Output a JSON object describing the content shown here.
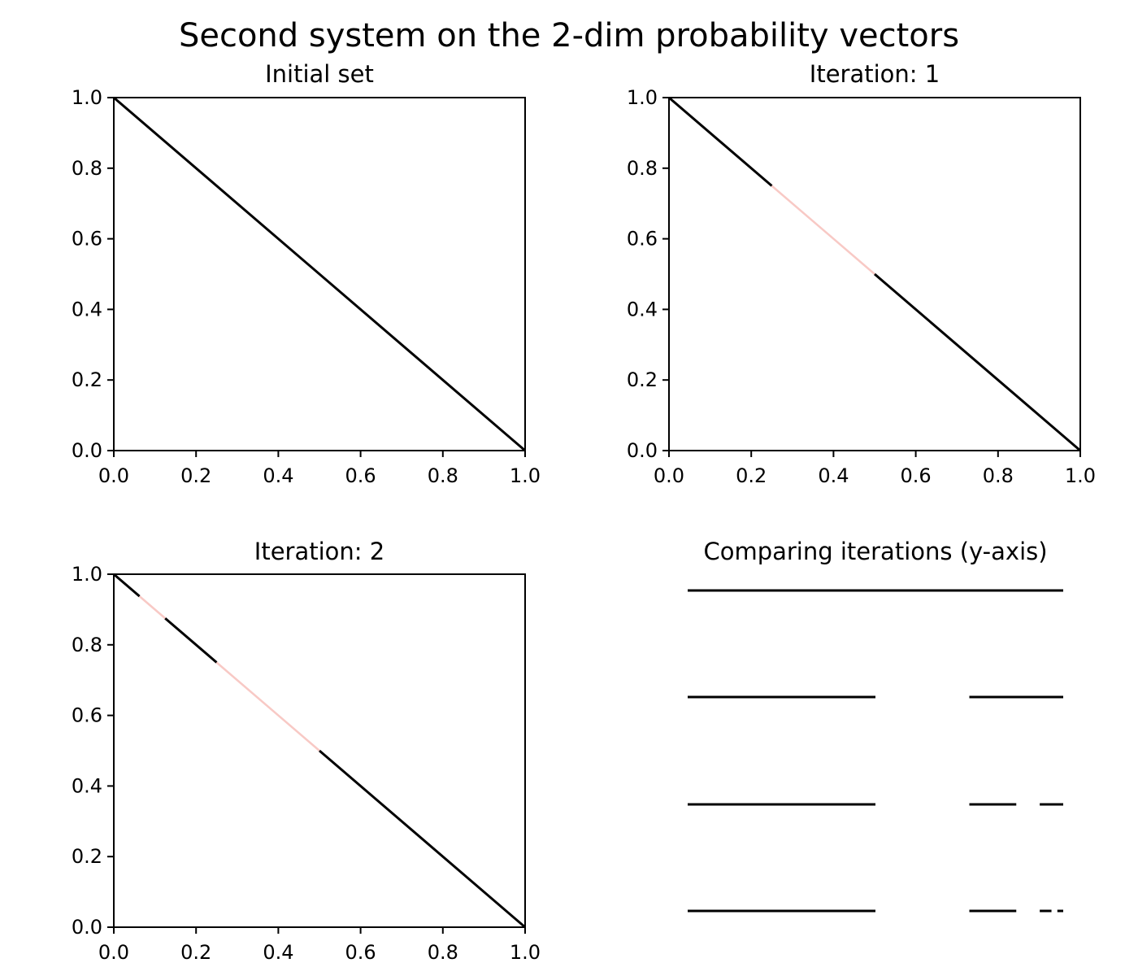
{
  "suptitle": "Second system on the 2-dim probability vectors",
  "colors": {
    "kept": "#000000",
    "removed": "#f8c9c5",
    "background": "#ffffff"
  },
  "chart_data": [
    {
      "type": "line",
      "title": "Initial set",
      "xlim": [
        0,
        1
      ],
      "ylim": [
        0,
        1
      ],
      "xticks": [
        "0.0",
        "0.2",
        "0.4",
        "0.6",
        "0.8",
        "1.0"
      ],
      "yticks": [
        "0.0",
        "0.2",
        "0.4",
        "0.6",
        "0.8",
        "1.0"
      ],
      "grid": false,
      "segments": [
        {
          "x": [
            0.0,
            1.0
          ],
          "y": [
            1.0,
            0.0
          ],
          "status": "kept"
        }
      ]
    },
    {
      "type": "line",
      "title": "Iteration: 1",
      "xlim": [
        0,
        1
      ],
      "ylim": [
        0,
        1
      ],
      "xticks": [
        "0.0",
        "0.2",
        "0.4",
        "0.6",
        "0.8",
        "1.0"
      ],
      "yticks": [
        "0.0",
        "0.2",
        "0.4",
        "0.6",
        "0.8",
        "1.0"
      ],
      "grid": false,
      "segments": [
        {
          "x": [
            0.0,
            0.25
          ],
          "y": [
            1.0,
            0.75
          ],
          "status": "kept"
        },
        {
          "x": [
            0.25,
            0.5
          ],
          "y": [
            0.75,
            0.5
          ],
          "status": "removed"
        },
        {
          "x": [
            0.5,
            1.0
          ],
          "y": [
            0.5,
            0.0
          ],
          "status": "kept"
        }
      ]
    },
    {
      "type": "line",
      "title": "Iteration: 2",
      "xlim": [
        0,
        1
      ],
      "ylim": [
        0,
        1
      ],
      "xticks": [
        "0.0",
        "0.2",
        "0.4",
        "0.6",
        "0.8",
        "1.0"
      ],
      "yticks": [
        "0.0",
        "0.2",
        "0.4",
        "0.6",
        "0.8",
        "1.0"
      ],
      "grid": false,
      "segments": [
        {
          "x": [
            0.0,
            0.0625
          ],
          "y": [
            1.0,
            0.9375
          ],
          "status": "kept"
        },
        {
          "x": [
            0.0625,
            0.125
          ],
          "y": [
            0.9375,
            0.875
          ],
          "status": "removed"
        },
        {
          "x": [
            0.125,
            0.25
          ],
          "y": [
            0.875,
            0.75
          ],
          "status": "kept"
        },
        {
          "x": [
            0.25,
            0.5
          ],
          "y": [
            0.75,
            0.5
          ],
          "status": "removed"
        },
        {
          "x": [
            0.5,
            1.0
          ],
          "y": [
            0.5,
            0.0
          ],
          "status": "kept"
        }
      ]
    },
    {
      "type": "line",
      "title": "Comparing iterations (y-axis)",
      "axes_visible": false,
      "rows": [
        {
          "intervals": [
            [
              0.0,
              1.0
            ]
          ]
        },
        {
          "intervals": [
            [
              0.0,
              0.5
            ],
            [
              0.75,
              1.0
            ]
          ]
        },
        {
          "intervals": [
            [
              0.0,
              0.5
            ],
            [
              0.75,
              0.875
            ],
            [
              0.9375,
              1.0
            ]
          ]
        },
        {
          "intervals": [
            [
              0.0,
              0.5
            ],
            [
              0.75,
              0.875
            ],
            [
              0.9375,
              0.96875
            ],
            [
              0.984375,
              1.0
            ]
          ]
        }
      ]
    }
  ]
}
